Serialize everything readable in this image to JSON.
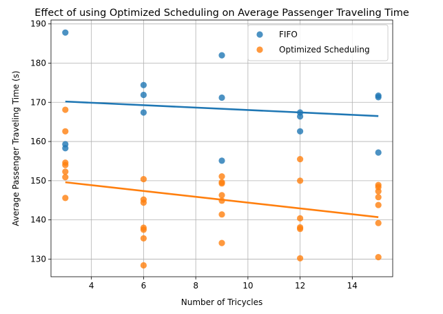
{
  "chart_data": {
    "type": "scatter",
    "title": "Effect of using Optimized Scheduling on Average Passenger Traveling Time",
    "xlabel": "Number of Tricycles",
    "ylabel": "Average Passenger Traveling Time (s)",
    "xlim": [
      2.45,
      15.55
    ],
    "ylim": [
      125.5,
      191.0
    ],
    "xticks": [
      4,
      6,
      8,
      10,
      12,
      14
    ],
    "yticks": [
      130,
      140,
      150,
      160,
      170,
      180,
      190
    ],
    "grid": true,
    "legend": "top-right",
    "series": [
      {
        "name": "FIFO",
        "color": "#1f77b4",
        "points": [
          [
            3,
            187.8
          ],
          [
            3,
            159.3
          ],
          [
            3,
            158.3
          ],
          [
            6,
            174.4
          ],
          [
            6,
            171.9
          ],
          [
            6,
            167.4
          ],
          [
            9,
            182.0
          ],
          [
            9,
            171.2
          ],
          [
            9,
            155.1
          ],
          [
            12,
            167.4
          ],
          [
            12,
            166.4
          ],
          [
            12,
            162.6
          ],
          [
            15,
            171.7
          ],
          [
            15,
            171.3
          ],
          [
            15,
            157.2
          ]
        ],
        "trend": [
          [
            3,
            170.2
          ],
          [
            15,
            166.5
          ]
        ]
      },
      {
        "name": "Optimized Scheduling",
        "color": "#ff7f0e",
        "points": [
          [
            3,
            168.1
          ],
          [
            3,
            162.6
          ],
          [
            3,
            154.6
          ],
          [
            3,
            154.0
          ],
          [
            3,
            152.3
          ],
          [
            3,
            150.9
          ],
          [
            3,
            145.6
          ],
          [
            6,
            150.4
          ],
          [
            6,
            145.2
          ],
          [
            6,
            144.4
          ],
          [
            6,
            138.0
          ],
          [
            6,
            137.5
          ],
          [
            6,
            135.3
          ],
          [
            6,
            128.4
          ],
          [
            9,
            151.1
          ],
          [
            9,
            149.6
          ],
          [
            9,
            149.3
          ],
          [
            9,
            146.3
          ],
          [
            9,
            144.9
          ],
          [
            9,
            141.4
          ],
          [
            9,
            134.1
          ],
          [
            12,
            155.5
          ],
          [
            12,
            150.0
          ],
          [
            12,
            140.4
          ],
          [
            12,
            138.1
          ],
          [
            12,
            137.7
          ],
          [
            12,
            130.2
          ],
          [
            15,
            148.9
          ],
          [
            15,
            148.4
          ],
          [
            15,
            147.3
          ],
          [
            15,
            145.8
          ],
          [
            15,
            143.8
          ],
          [
            15,
            139.2
          ],
          [
            15,
            130.5
          ]
        ],
        "trend": [
          [
            3,
            149.6
          ],
          [
            15,
            140.7
          ]
        ]
      }
    ]
  }
}
